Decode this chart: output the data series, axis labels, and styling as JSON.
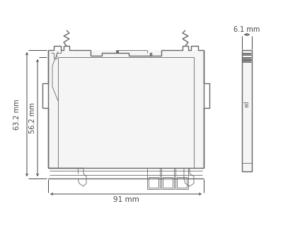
{
  "bg_color": "#ffffff",
  "line_color": "#666666",
  "dim_color": "#444444",
  "fill_body": "#f5f5f5",
  "fill_white": "#ffffff",
  "dim_91": "91 mm",
  "dim_63": "63.2 mm",
  "dim_56": "56.2 mm",
  "dim_6": "6.1 mm",
  "lw_main": 1.0,
  "lw_thin": 0.6,
  "lw_dim": 0.7
}
